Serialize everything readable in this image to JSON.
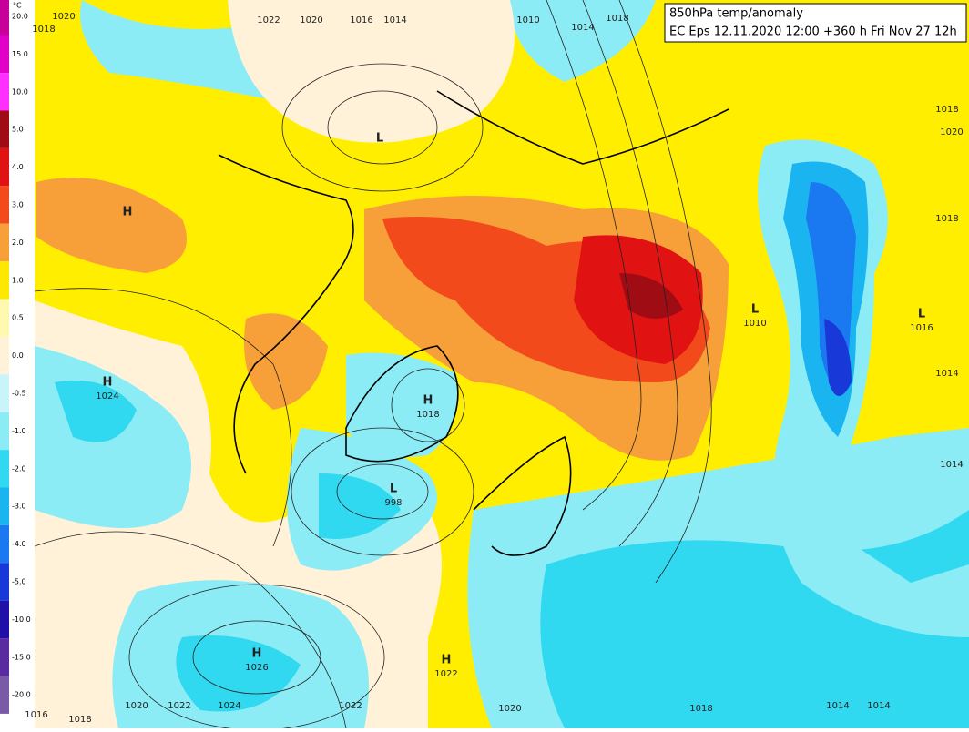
{
  "title": {
    "line1": "850hPa temp/anomaly",
    "line2": "EC Eps 12.11.2020 12:00 +360 h Fri Nov 27 12h"
  },
  "legend": {
    "unit": "°C",
    "labels": [
      "20.0",
      "15.0",
      "10.0",
      "5.0",
      "4.0",
      "3.0",
      "2.0",
      "1.0",
      "0.5",
      "0.0",
      "-0.5",
      "-1.0",
      "-2.0",
      "-3.0",
      "-4.0",
      "-5.0",
      "-10.0",
      "-15.0",
      "-20.0"
    ],
    "colors": [
      "#c8009a",
      "#e000c8",
      "#ff30ff",
      "#a00c14",
      "#e01212",
      "#f24a1a",
      "#f7a03a",
      "#ffe800",
      "#fff9b0",
      "#fff2d8",
      "#c8f4fa",
      "#8cecf6",
      "#30d8f0",
      "#1ab4f0",
      "#1a78f0",
      "#1838d8",
      "#2010a8",
      "#5a2aa0",
      "#7a5aa8"
    ]
  },
  "centers": [
    {
      "type": "H"
    },
    {
      "type": "L"
    },
    {
      "type": "H",
      "value": "1024"
    },
    {
      "type": "H",
      "value": "1018"
    },
    {
      "type": "L",
      "value": "998"
    },
    {
      "type": "H",
      "value": "1026"
    },
    {
      "type": "H",
      "value": "1022"
    },
    {
      "type": "L",
      "value": "1010"
    },
    {
      "type": "L",
      "value": "1016"
    }
  ],
  "isobar_labels": [
    "1020",
    "1018",
    "1022",
    "1020",
    "1016",
    "1014",
    "1010",
    "1014",
    "1018",
    "1020",
    "1018",
    "1018",
    "1014",
    "1014",
    "1016",
    "1018",
    "1020",
    "1022",
    "1024",
    "1022",
    "1020",
    "1018",
    "1014",
    "1014"
  ]
}
